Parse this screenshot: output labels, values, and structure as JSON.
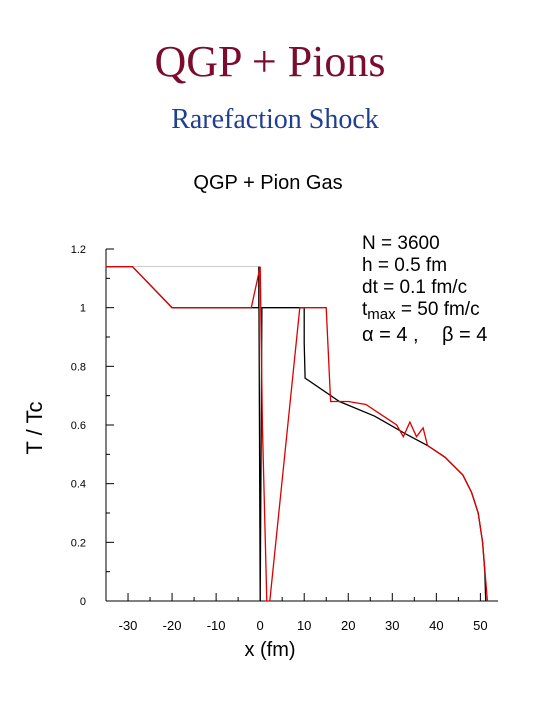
{
  "slide": {
    "title": "QGP + Pions",
    "subtitle": "Rarefaction Shock",
    "title_color": "#7b0c2e",
    "subtitle_color": "#1f3f8f"
  },
  "chart_data": {
    "type": "line",
    "title": "QGP + Pion Gas",
    "xlabel": "x (fm)",
    "ylabel": "T / Tc",
    "xlim": [
      -35,
      54
    ],
    "ylim": [
      0,
      1.2
    ],
    "x_ticks": [
      -30,
      -20,
      -10,
      0,
      10,
      20,
      30,
      40,
      50
    ],
    "y_ticks": [
      0,
      0.2,
      0.4,
      0.6,
      0.8,
      1,
      1.2
    ],
    "grid": false,
    "annotations": {
      "N": "N = 3600",
      "h": "h = 0.5 fm",
      "dt": "dt = 0.1 fm/c",
      "tmax_base": "t",
      "tmax_sub": "max",
      "tmax_rest": " = 50 fm/c",
      "alpha": "α = 4 ,",
      "beta": "β = 4"
    },
    "series": [
      {
        "color": "#000000",
        "points": [
          [
            -35,
            1.14
          ],
          [
            -29,
            1.14
          ],
          [
            -20,
            1.0
          ],
          [
            -0.3,
            1.0
          ],
          [
            -0.3,
            1.14
          ],
          [
            0,
            0
          ],
          [
            0.4,
            1.0
          ],
          [
            10,
            1.0
          ],
          [
            10,
            0.88
          ],
          [
            10.2,
            0.76
          ],
          [
            18,
            0.68
          ],
          [
            26,
            0.63
          ],
          [
            33,
            0.57
          ],
          [
            38,
            0.53
          ],
          [
            42,
            0.49
          ],
          [
            46,
            0.43
          ],
          [
            48,
            0.37
          ],
          [
            49.5,
            0.3
          ],
          [
            50.5,
            0.2
          ],
          [
            51,
            0.1
          ],
          [
            51.2,
            0
          ]
        ]
      },
      {
        "color": "#dd0000",
        "points": [
          [
            -35,
            1.14
          ],
          [
            -29,
            1.14
          ],
          [
            -20,
            1.0
          ],
          [
            -2,
            1.0
          ],
          [
            0,
            1.14
          ],
          [
            0.5,
            0.6
          ],
          [
            1.5,
            0.0
          ],
          [
            2.2,
            0
          ],
          [
            9,
            1.0
          ],
          [
            15,
            1.0
          ],
          [
            16,
            0.68
          ],
          [
            20,
            0.68
          ],
          [
            24,
            0.67
          ],
          [
            28,
            0.63
          ],
          [
            31,
            0.6
          ],
          [
            32.5,
            0.56
          ],
          [
            34,
            0.61
          ],
          [
            35.5,
            0.56
          ],
          [
            37,
            0.59
          ],
          [
            38,
            0.53
          ],
          [
            42,
            0.49
          ],
          [
            46,
            0.43
          ],
          [
            48,
            0.37
          ],
          [
            49.5,
            0.3
          ],
          [
            50.5,
            0.2
          ],
          [
            51.6,
            0
          ]
        ]
      }
    ]
  }
}
